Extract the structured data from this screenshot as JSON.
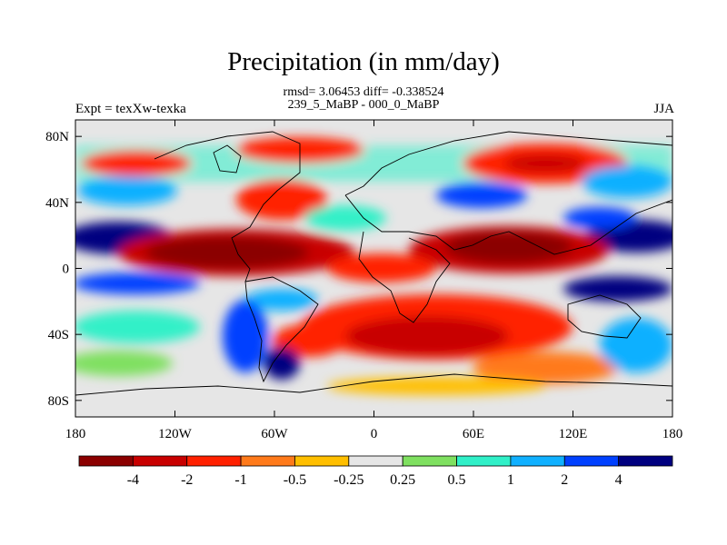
{
  "title": "Precipitation (in mm/day)",
  "stats_line": "rmsd= 3.06453 diff= -0.338524",
  "comparison_label": "239_5_MaBP - 000_0_MaBP",
  "experiment_label": "Expt = texXw-texka",
  "season_label": "JJA",
  "map": {
    "projection": "cylindrical equidistant",
    "lon_range": [
      -180,
      180
    ],
    "lat_range": [
      -90,
      90
    ],
    "x_ticks": [
      "180",
      "120W",
      "60W",
      "0",
      "60E",
      "120E",
      "180"
    ],
    "y_ticks": [
      "80N",
      "40N",
      "0",
      "40S",
      "80S"
    ],
    "colors": {
      "ocean_band_positive": "#000080",
      "tropics_negative": "#8b0000",
      "background_near_zero": "#e6e6e6",
      "coastline": "#000000"
    }
  },
  "colorbar": {
    "boundaries": [
      "-4",
      "-2",
      "-1",
      "-0.5",
      "-0.25",
      "0.25",
      "0.5",
      "1",
      "2",
      "4"
    ],
    "colors": [
      "#8b0000",
      "#c80000",
      "#ff2000",
      "#ff7a1a",
      "#ffbf00",
      "#e6e6e6",
      "#7fe060",
      "#30f0c8",
      "#10b0ff",
      "#0040ff",
      "#000080"
    ]
  }
}
